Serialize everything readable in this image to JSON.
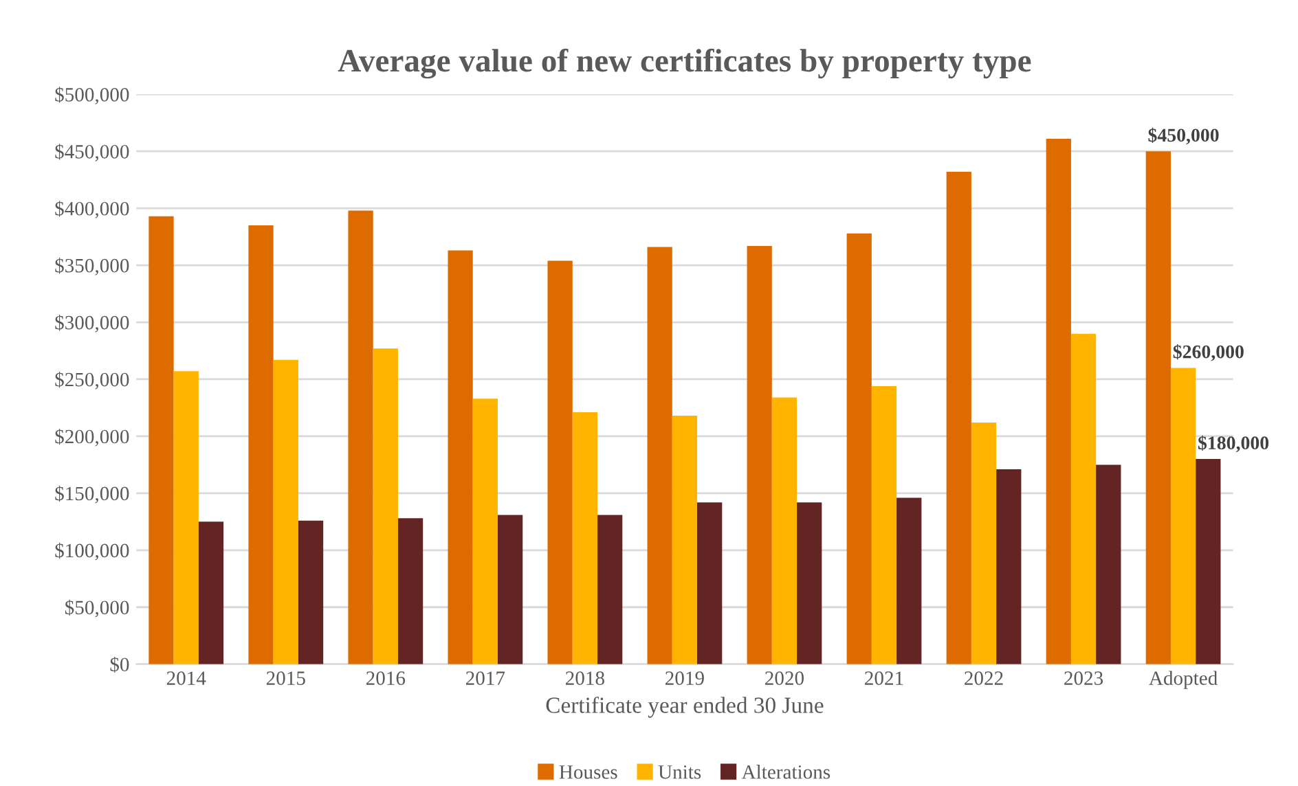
{
  "chart_data": {
    "type": "bar",
    "title": "Average value of new certificates by property type",
    "xlabel": "Certificate year ended 30 June",
    "categories": [
      "2014",
      "2015",
      "2016",
      "2017",
      "2018",
      "2019",
      "2020",
      "2021",
      "2022",
      "2023",
      "Adopted"
    ],
    "series": [
      {
        "name": "Houses",
        "color": "#dd6b00",
        "values": [
          393000,
          385000,
          398000,
          363000,
          354000,
          366000,
          367000,
          378000,
          432000,
          461000,
          450000
        ],
        "value_labels": [
          null,
          null,
          null,
          null,
          null,
          null,
          null,
          null,
          null,
          null,
          "$450,000"
        ]
      },
      {
        "name": "Units",
        "color": "#ffb400",
        "values": [
          257000,
          267000,
          277000,
          233000,
          221000,
          218000,
          234000,
          244000,
          212000,
          290000,
          260000
        ],
        "value_labels": [
          null,
          null,
          null,
          null,
          null,
          null,
          null,
          null,
          null,
          null,
          "$260,000"
        ]
      },
      {
        "name": "Alterations",
        "color": "#632523",
        "values": [
          125000,
          126000,
          128000,
          131000,
          131000,
          142000,
          142000,
          146000,
          171000,
          175000,
          180000
        ],
        "value_labels": [
          null,
          null,
          null,
          null,
          null,
          null,
          null,
          null,
          null,
          null,
          "$180,000"
        ]
      }
    ],
    "ylim": [
      0,
      500000
    ],
    "yticks": [
      {
        "value": 0,
        "label": "$0"
      },
      {
        "value": 50000,
        "label": "$50,000"
      },
      {
        "value": 100000,
        "label": "$100,000"
      },
      {
        "value": 150000,
        "label": "$150,000"
      },
      {
        "value": 200000,
        "label": "$200,000"
      },
      {
        "value": 250000,
        "label": "$250,000"
      },
      {
        "value": 300000,
        "label": "$300,000"
      },
      {
        "value": 350000,
        "label": "$350,000"
      },
      {
        "value": 400000,
        "label": "$400,000"
      },
      {
        "value": 450000,
        "label": "$450,000"
      },
      {
        "value": 500000,
        "label": "$500,000"
      }
    ],
    "grid": "y",
    "legend": "bottom"
  }
}
